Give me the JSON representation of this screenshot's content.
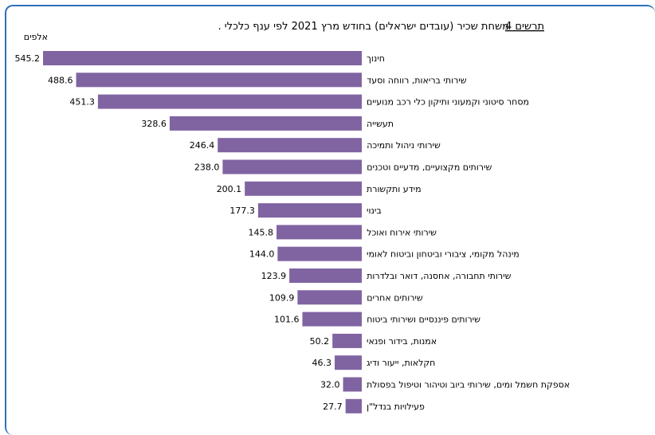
{
  "chart_data": {
    "type": "bar",
    "orientation": "horizontal",
    "title_prefix": "תרשים 4",
    "title_rest": ". משחת שכיר (עובדים ישראלים) בחודש מרץ 2021 לפי ענף כלכלי",
    "unit_label": "אלפים",
    "bar_color": "#8064a2",
    "xlim": [
      0,
      560
    ],
    "grid": false,
    "categories": [
      "חינוך",
      "שירותי בריאות, רווחה וסעד",
      "מסחר סיטוני וקמעוני ותיקון כלי רכב מנועיים",
      "תעשייה",
      "שירותי ניהול ותמיכה",
      "שירותים מקצועיים, מדעיים וטכנים",
      "מידע ותקשורת",
      "בינוי",
      "שירותי אירוח ואוכל",
      "מינהל מקומי, ציבורי וביטחון וביטוח לאומי",
      "שירותי תחבורה, אחסנה, דואר ובלדרות",
      "שירותים אחרים",
      "שירותים פיננסיים ושירותי ביטוח",
      "אמנות, בידור ופנאי",
      "חקלאות, ייעור ודיג",
      "אספקת חשמל ומים, שירותי ביוב וטיהור וטיפול בפסולת",
      "פעילויות בנדל\"ן"
    ],
    "values": [
      545.2,
      488.6,
      451.3,
      328.6,
      246.4,
      238.0,
      200.1,
      177.3,
      145.8,
      144.0,
      123.9,
      109.9,
      101.6,
      50.2,
      46.3,
      32.0,
      27.7
    ],
    "value_labels": [
      "545.2",
      "488.6",
      "451.3",
      "328.6",
      "246.4",
      "238.0",
      "200.1",
      "177.3",
      "145.8",
      "144.0",
      "123.9",
      "109.9",
      "101.6",
      "50.2",
      "46.3",
      "32.0",
      "27.7"
    ]
  }
}
